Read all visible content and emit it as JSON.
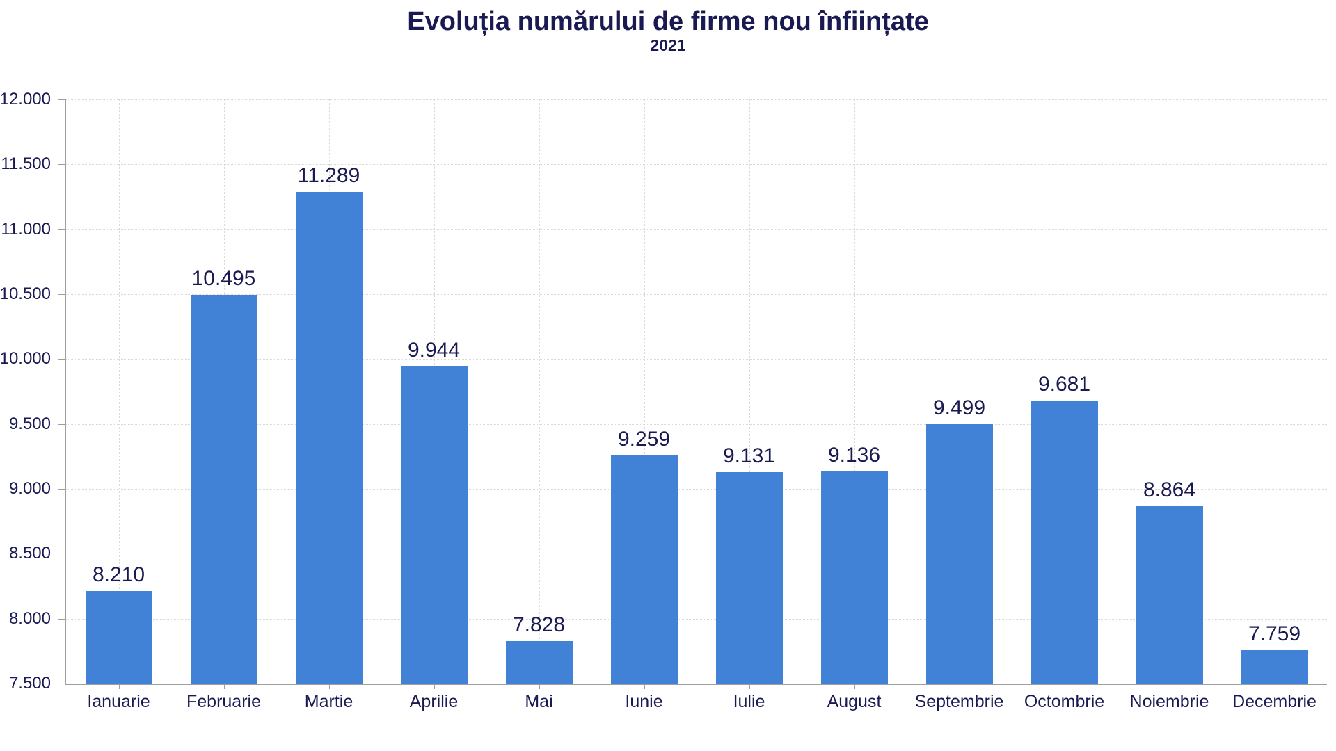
{
  "page": {
    "title": "Evoluția numărului de firme nou înființate",
    "subtitle": "2021"
  },
  "chart_data": {
    "type": "bar",
    "title": "Evoluția numărului de firme nou înființate",
    "subtitle": "2021",
    "categories": [
      "Ianuarie",
      "Februarie",
      "Martie",
      "Aprilie",
      "Mai",
      "Iunie",
      "Iulie",
      "August",
      "Septembrie",
      "Octombrie",
      "Noiembrie",
      "Decembrie"
    ],
    "values": [
      8210,
      10495,
      11289,
      9944,
      7828,
      9259,
      9131,
      9136,
      9499,
      9681,
      8864,
      7759
    ],
    "value_labels": [
      "8.210",
      "10.495",
      "11.289",
      "9.944",
      "7.828",
      "9.259",
      "9.131",
      "9.136",
      "9.499",
      "9.681",
      "8.864",
      "7.759"
    ],
    "xlabel": "",
    "ylabel": "",
    "ylim": [
      7500,
      12000
    ],
    "ytick_step": 500,
    "yticks": [
      {
        "value": 7500,
        "label": "7.500"
      },
      {
        "value": 8000,
        "label": "8.000"
      },
      {
        "value": 8500,
        "label": "8.500"
      },
      {
        "value": 9000,
        "label": "9.000"
      },
      {
        "value": 9500,
        "label": "9.500"
      },
      {
        "value": 10000,
        "label": "10.000"
      },
      {
        "value": 10500,
        "label": "10.500"
      },
      {
        "value": 11000,
        "label": "11.000"
      },
      {
        "value": 11500,
        "label": "11.500"
      },
      {
        "value": 12000,
        "label": "12.000"
      }
    ],
    "grid": {
      "horizontal": "dotted",
      "vertical": "dotted-at-category-centers"
    },
    "legend_position": "none",
    "colors": {
      "bar": "#4182d7",
      "text": "#1a1a52",
      "grid": "#d9d9d9",
      "axis": "#9e9e9e"
    }
  }
}
